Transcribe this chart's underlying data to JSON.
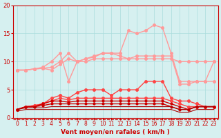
{
  "x": [
    0,
    1,
    2,
    3,
    4,
    5,
    6,
    7,
    8,
    9,
    10,
    11,
    12,
    13,
    14,
    15,
    16,
    17,
    18,
    19,
    20,
    21,
    22,
    23
  ],
  "series": [
    {
      "name": "light_pink_high",
      "color": "#ff9999",
      "linewidth": 1.0,
      "marker": "o",
      "markersize": 2.5,
      "y": [
        8.5,
        8.5,
        8.7,
        8.8,
        9.0,
        10.0,
        11.5,
        10.0,
        10.5,
        11.0,
        11.5,
        11.5,
        11.5,
        15.5,
        15.0,
        15.5,
        16.5,
        16.0,
        11.5,
        6.5,
        6.5,
        6.5,
        6.5,
        10.0
      ]
    },
    {
      "name": "light_pink_mid1",
      "color": "#ff9999",
      "linewidth": 1.0,
      "marker": "o",
      "markersize": 2.5,
      "y": [
        8.5,
        8.5,
        8.7,
        9.0,
        10.0,
        11.5,
        6.5,
        10.0,
        10.5,
        10.8,
        11.5,
        11.5,
        11.0,
        10.5,
        11.0,
        11.0,
        11.0,
        11.0,
        11.0,
        6.0,
        6.0,
        6.5,
        6.5,
        6.5
      ]
    },
    {
      "name": "light_pink_mid2",
      "color": "#ff9999",
      "linewidth": 1.0,
      "marker": "o",
      "markersize": 2.5,
      "y": [
        8.5,
        8.5,
        8.7,
        8.8,
        8.5,
        9.5,
        10.5,
        10.0,
        10.0,
        10.5,
        10.5,
        10.5,
        10.5,
        10.5,
        10.5,
        10.5,
        10.5,
        10.5,
        10.5,
        10.0,
        10.0,
        10.0,
        10.0,
        10.0
      ]
    },
    {
      "name": "medium_red_high",
      "color": "#ff4444",
      "linewidth": 1.0,
      "marker": "o",
      "markersize": 2.5,
      "y": [
        1.5,
        2.0,
        2.2,
        2.5,
        3.5,
        4.0,
        3.5,
        4.5,
        5.0,
        5.0,
        5.0,
        4.0,
        5.0,
        5.0,
        5.0,
        6.5,
        6.5,
        6.5,
        3.5,
        3.0,
        3.0,
        2.5,
        2.0,
        2.0
      ]
    },
    {
      "name": "medium_red_mid",
      "color": "#ff4444",
      "linewidth": 1.0,
      "marker": "o",
      "markersize": 2.5,
      "y": [
        1.5,
        2.0,
        2.2,
        2.5,
        3.0,
        3.5,
        3.2,
        3.5,
        3.5,
        3.5,
        3.5,
        3.5,
        3.5,
        3.5,
        3.5,
        3.5,
        3.5,
        3.5,
        3.0,
        2.5,
        2.0,
        2.0,
        2.0,
        2.0
      ]
    },
    {
      "name": "dark_red_low1",
      "color": "#cc0000",
      "linewidth": 1.0,
      "marker": "o",
      "markersize": 2.0,
      "y": [
        1.5,
        2.0,
        2.0,
        2.5,
        3.0,
        3.0,
        2.8,
        3.0,
        3.0,
        3.0,
        3.0,
        3.0,
        3.0,
        3.0,
        3.0,
        3.0,
        3.0,
        3.0,
        2.5,
        2.0,
        1.5,
        2.0,
        2.0,
        2.0
      ]
    },
    {
      "name": "dark_red_low2",
      "color": "#cc0000",
      "linewidth": 1.0,
      "marker": "o",
      "markersize": 2.0,
      "y": [
        1.5,
        2.0,
        2.0,
        2.2,
        2.5,
        2.5,
        2.5,
        2.5,
        2.5,
        2.5,
        2.5,
        2.5,
        2.5,
        2.5,
        2.5,
        2.5,
        2.5,
        2.5,
        2.0,
        1.5,
        1.5,
        2.0,
        2.0,
        2.0
      ]
    },
    {
      "name": "dark_red_flat1",
      "color": "#aa0000",
      "linewidth": 0.8,
      "marker": null,
      "markersize": 0,
      "y": [
        1.5,
        1.8,
        1.8,
        1.8,
        2.0,
        2.0,
        2.0,
        2.0,
        2.0,
        2.0,
        2.0,
        2.0,
        2.0,
        2.0,
        2.0,
        2.0,
        2.0,
        2.0,
        2.0,
        1.5,
        1.5,
        2.0,
        2.0,
        2.0
      ]
    },
    {
      "name": "dark_red_flat2",
      "color": "#aa0000",
      "linewidth": 0.8,
      "marker": null,
      "markersize": 0,
      "y": [
        1.2,
        1.5,
        1.5,
        1.5,
        1.5,
        1.5,
        1.5,
        1.5,
        1.5,
        1.5,
        1.5,
        1.5,
        1.5,
        1.5,
        1.5,
        1.5,
        1.5,
        1.5,
        1.5,
        1.0,
        1.0,
        1.5,
        1.5,
        1.5
      ]
    }
  ],
  "xlabel": "Vent moyen/en rafales ( km/h )",
  "ylabel": "",
  "xlim": [
    0,
    23
  ],
  "ylim": [
    0,
    20
  ],
  "yticks": [
    0,
    5,
    10,
    15,
    20
  ],
  "xticks": [
    0,
    1,
    2,
    3,
    4,
    5,
    6,
    7,
    8,
    9,
    10,
    11,
    12,
    13,
    14,
    15,
    16,
    17,
    18,
    19,
    20,
    21,
    22,
    23
  ],
  "bg_color": "#d6f0f0",
  "grid_color": "#aadddd",
  "tick_color": "#cc0000",
  "label_color": "#cc0000",
  "title_color": "#cc0000",
  "dashes_y": [
    -0.8
  ],
  "dash_color": "#cc0000"
}
